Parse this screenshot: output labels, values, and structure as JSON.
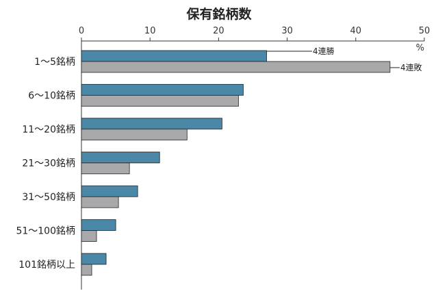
{
  "chart_data": {
    "type": "bar",
    "orientation": "horizontal",
    "title": "保有銘柄数",
    "unit": "%",
    "xlim": [
      0,
      50
    ],
    "ticks": [
      0,
      10,
      20,
      30,
      40,
      50
    ],
    "categories": [
      "1〜5銘柄",
      "6〜10銘柄",
      "11〜20銘柄",
      "21〜30銘柄",
      "31〜50銘柄",
      "51〜100銘柄",
      "101銘柄以上"
    ],
    "series": [
      {
        "name": "4連勝",
        "color": "#4b87a6",
        "values": [
          27.0,
          23.6,
          20.5,
          11.4,
          8.2,
          5.0,
          3.6
        ]
      },
      {
        "name": "4連敗",
        "color": "#a9a9ab",
        "values": [
          45.0,
          22.9,
          15.4,
          7.0,
          5.4,
          2.2,
          1.5
        ]
      }
    ],
    "grid": false,
    "legend": "annotations on first category bars"
  }
}
